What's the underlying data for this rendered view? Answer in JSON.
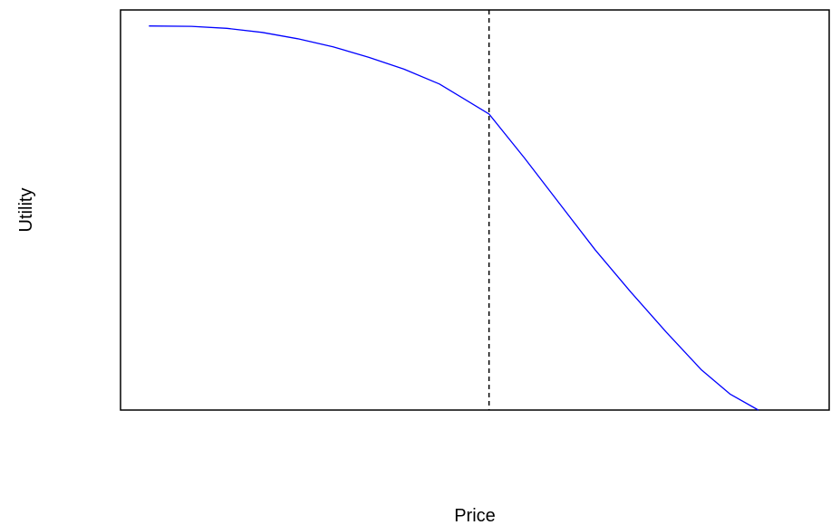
{
  "chart_data": {
    "type": "line",
    "title": "",
    "xlabel": "Price",
    "ylabel": "Utility",
    "xlim": [
      0,
      10
    ],
    "ylim": [
      0,
      10
    ],
    "x_ticks_shown": false,
    "y_ticks_shown": false,
    "grid": false,
    "legend": "none",
    "colors": {
      "curve": "#0000ff",
      "reference_line": "#000000",
      "frame": "#000000"
    },
    "reference_line": {
      "orientation": "vertical",
      "x": 5.2,
      "style": "dashed"
    },
    "series": [
      {
        "x": [
          0.4,
          1.0,
          1.5,
          2.0,
          2.5,
          3.0,
          3.5,
          4.0,
          4.5,
          5.2,
          5.7,
          6.2,
          6.7,
          7.2,
          7.7,
          8.2,
          8.6,
          9.0
        ],
        "values": [
          9.6,
          9.59,
          9.54,
          9.44,
          9.28,
          9.08,
          8.82,
          8.52,
          8.15,
          7.4,
          6.3,
          5.15,
          4.0,
          2.95,
          1.95,
          1.0,
          0.4,
          0.0
        ]
      }
    ]
  }
}
